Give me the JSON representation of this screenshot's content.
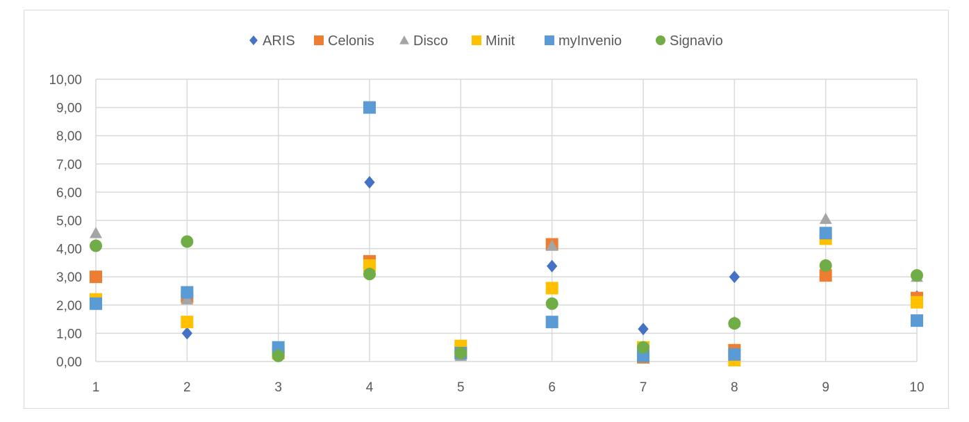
{
  "chart_data": {
    "type": "scatter",
    "title": "",
    "xlabel": "",
    "ylabel": "",
    "xlim": [
      1,
      10
    ],
    "ylim": [
      0,
      10
    ],
    "x_ticks": [
      "1",
      "2",
      "3",
      "4",
      "5",
      "6",
      "7",
      "8",
      "9",
      "10"
    ],
    "y_ticks": [
      "0,00",
      "1,00",
      "2,00",
      "3,00",
      "4,00",
      "5,00",
      "6,00",
      "7,00",
      "8,00",
      "9,00",
      "10,00"
    ],
    "grid": true,
    "legend_position": "top",
    "series": [
      {
        "name": "ARIS",
        "marker": "diamond",
        "color": "#4472C4",
        "x": [
          1,
          2,
          3,
          4,
          5,
          6,
          7,
          8,
          9,
          10
        ],
        "y": [
          2.1,
          1.0,
          0.2,
          6.35,
          0.35,
          3.38,
          1.15,
          3.0,
          3.2,
          2.3
        ]
      },
      {
        "name": "Celonis",
        "marker": "square",
        "color": "#ED7D31",
        "x": [
          1,
          2,
          3,
          4,
          5,
          6,
          7,
          8,
          9,
          10
        ],
        "y": [
          3.0,
          2.3,
          0.3,
          3.55,
          0.3,
          4.15,
          0.15,
          0.4,
          3.05,
          2.25
        ]
      },
      {
        "name": "Disco",
        "marker": "triangle",
        "color": "#A5A5A5",
        "x": [
          1,
          2,
          3,
          4,
          5,
          6,
          7,
          8,
          9,
          10
        ],
        "y": [
          4.55,
          2.2,
          0.3,
          3.2,
          0.2,
          4.1,
          0.25,
          1.4,
          5.05,
          3.0
        ]
      },
      {
        "name": "Minit",
        "marker": "square",
        "color": "#FFC000",
        "x": [
          1,
          2,
          3,
          4,
          5,
          6,
          7,
          8,
          9,
          10
        ],
        "y": [
          2.2,
          1.4,
          0.3,
          3.4,
          0.55,
          2.6,
          0.5,
          0.05,
          4.35,
          2.1
        ]
      },
      {
        "name": "myInvenio",
        "marker": "square",
        "color": "#5B9BD5",
        "x": [
          1,
          2,
          3,
          4,
          5,
          6,
          7,
          8,
          9,
          10
        ],
        "y": [
          2.05,
          2.45,
          0.5,
          9.0,
          0.3,
          1.4,
          0.2,
          0.25,
          4.55,
          1.45
        ]
      },
      {
        "name": "Signavio",
        "marker": "circle",
        "color": "#70AD47",
        "x": [
          1,
          2,
          3,
          4,
          5,
          6,
          7,
          8,
          9,
          10
        ],
        "y": [
          4.1,
          4.25,
          0.2,
          3.1,
          0.3,
          2.05,
          0.5,
          1.35,
          3.4,
          3.05
        ]
      }
    ]
  }
}
